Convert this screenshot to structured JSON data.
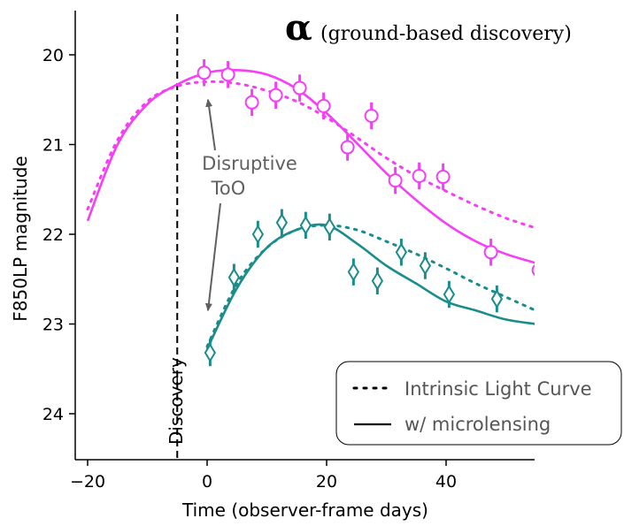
{
  "chart_data": {
    "type": "line",
    "title": "α",
    "subtitle": "(ground-based discovery)",
    "xlabel": "Time (observer-frame days)",
    "ylabel": "F850LP magnitude",
    "xlim": [
      -21,
      55
    ],
    "ylim": [
      24.5,
      19.5
    ],
    "y_inverted": true,
    "x_ticks": [
      -20,
      0,
      20,
      40
    ],
    "x_tick_labels": [
      "−20",
      "0",
      "20",
      "40"
    ],
    "y_ticks": [
      20,
      21,
      22,
      23,
      24
    ],
    "y_tick_labels": [
      "20",
      "21",
      "22",
      "23",
      "24"
    ],
    "discovery_time": -5,
    "discovery_label": "Discovery",
    "annotation": {
      "text_lines": [
        "Disruptive",
        "ToO"
      ],
      "arrow_targets": [
        [
          0,
          20.5
        ],
        [
          0,
          22.85
        ]
      ]
    },
    "legend": {
      "placement": "lower-right",
      "entries": [
        {
          "label": "Intrinsic Light Curve",
          "style": "dotted"
        },
        {
          "label": "w/ microlensing",
          "style": "solid"
        }
      ]
    },
    "colors": {
      "magenta": "#f53ef5",
      "teal": "#1a8c8c"
    },
    "series": [
      {
        "style": "dotted",
        "color": "#f53ef5",
        "x": [
          -20,
          -15,
          -10,
          -5,
          0,
          5,
          10,
          15,
          20,
          25,
          30,
          35,
          40,
          45,
          50,
          55
        ],
        "y": [
          21.72,
          20.95,
          20.52,
          20.35,
          20.3,
          20.32,
          20.4,
          20.52,
          20.7,
          20.92,
          21.15,
          21.35,
          21.52,
          21.68,
          21.82,
          21.93
        ]
      },
      {
        "style": "solid",
        "color": "#f53ef5",
        "x": [
          -20,
          -15,
          -10,
          -5,
          0,
          5,
          10,
          15,
          20,
          25,
          30,
          35,
          40,
          45,
          50,
          55
        ],
        "y": [
          21.85,
          21.0,
          20.55,
          20.33,
          20.2,
          20.17,
          20.22,
          20.38,
          20.65,
          20.98,
          21.32,
          21.62,
          21.88,
          22.08,
          22.22,
          22.32
        ]
      },
      {
        "style": "dotted",
        "color": "#1a8c8c",
        "x": [
          0,
          5,
          10,
          15,
          20,
          25,
          30,
          35,
          40,
          45,
          50,
          55
        ],
        "y": [
          23.25,
          22.55,
          22.15,
          21.95,
          21.9,
          21.95,
          22.08,
          22.22,
          22.38,
          22.55,
          22.7,
          22.85
        ]
      },
      {
        "style": "solid",
        "color": "#1a8c8c",
        "x": [
          0,
          5,
          10,
          15,
          20,
          25,
          30,
          35,
          40,
          45,
          50,
          55
        ],
        "y": [
          23.28,
          22.6,
          22.15,
          21.95,
          21.9,
          22.1,
          22.35,
          22.55,
          22.75,
          22.85,
          22.95,
          23.0
        ]
      }
    ],
    "points": [
      {
        "marker": "circle",
        "color": "#f53ef5",
        "x": [
          -0.5,
          3.5,
          7.5,
          11.5,
          15.5,
          19.5,
          23.5,
          27.5,
          31.5,
          35.5,
          39.5,
          47.5,
          55.5
        ],
        "y": [
          20.2,
          20.22,
          20.53,
          20.45,
          20.37,
          20.57,
          21.03,
          20.68,
          21.4,
          21.35,
          21.36,
          22.2,
          22.4
        ],
        "yerr": [
          0.15,
          0.15,
          0.15,
          0.15,
          0.15,
          0.15,
          0.15,
          0.15,
          0.15,
          0.15,
          0.15,
          0.15,
          0.15
        ]
      },
      {
        "marker": "diamond",
        "color": "#1a8c8c",
        "x": [
          0.5,
          4.5,
          8.5,
          12.5,
          16.5,
          20.5,
          24.5,
          28.5,
          32.5,
          36.5,
          40.5,
          48.5
        ],
        "y": [
          23.32,
          22.48,
          22.0,
          21.87,
          21.9,
          21.92,
          22.42,
          22.52,
          22.2,
          22.35,
          22.67,
          22.72
        ],
        "yerr": [
          0.15,
          0.15,
          0.15,
          0.15,
          0.15,
          0.15,
          0.15,
          0.15,
          0.15,
          0.15,
          0.15,
          0.15
        ]
      }
    ]
  }
}
